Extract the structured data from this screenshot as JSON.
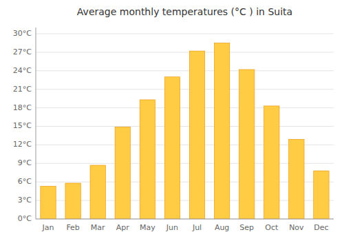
{
  "chart_data": {
    "type": "bar",
    "title": "Average monthly temperatures (°C ) in Suita",
    "categories": [
      "Jan",
      "Feb",
      "Mar",
      "Apr",
      "May",
      "Jun",
      "Jul",
      "Aug",
      "Sep",
      "Oct",
      "Nov",
      "Dec"
    ],
    "values": [
      5.3,
      5.8,
      8.7,
      14.9,
      19.3,
      23.0,
      27.2,
      28.5,
      24.2,
      18.3,
      12.9,
      7.8
    ],
    "color": "#FFCC44",
    "ylim": [
      0,
      31
    ],
    "yticks": [
      {
        "value": 0,
        "label": "0°C"
      },
      {
        "value": 3,
        "label": "3°C"
      },
      {
        "value": 6,
        "label": "6°C"
      },
      {
        "value": 9,
        "label": "9°C"
      },
      {
        "value": 12,
        "label": "12°C"
      },
      {
        "value": 15,
        "label": "15°C"
      },
      {
        "value": 18,
        "label": "18°C"
      },
      {
        "value": 21,
        "label": "21°C"
      },
      {
        "value": 24,
        "label": "24°C"
      },
      {
        "value": 27,
        "label": "27°C"
      },
      {
        "value": 30,
        "label": "30°C"
      }
    ],
    "grid": true
  }
}
